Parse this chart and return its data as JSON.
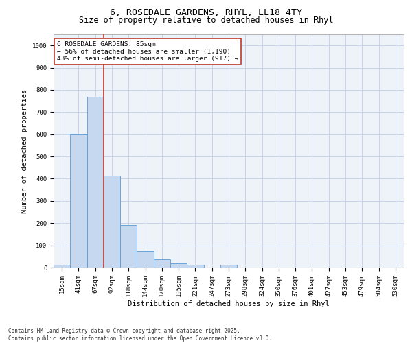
{
  "title_line1": "6, ROSEDALE GARDENS, RHYL, LL18 4TY",
  "title_line2": "Size of property relative to detached houses in Rhyl",
  "xlabel": "Distribution of detached houses by size in Rhyl",
  "ylabel": "Number of detached properties",
  "categories": [
    "15sqm",
    "41sqm",
    "67sqm",
    "92sqm",
    "118sqm",
    "144sqm",
    "170sqm",
    "195sqm",
    "221sqm",
    "247sqm",
    "273sqm",
    "298sqm",
    "324sqm",
    "350sqm",
    "376sqm",
    "401sqm",
    "427sqm",
    "453sqm",
    "479sqm",
    "504sqm",
    "530sqm"
  ],
  "values": [
    12,
    600,
    770,
    415,
    190,
    75,
    38,
    17,
    12,
    0,
    12,
    0,
    0,
    0,
    0,
    0,
    0,
    0,
    0,
    0,
    0
  ],
  "bar_color": "#c5d8f0",
  "bar_edge_color": "#5b9bd5",
  "grid_color": "#c8d4e8",
  "background_color": "#eef2f9",
  "vline_color": "#c0392b",
  "vline_x_index": 2.5,
  "annotation_box_text": "6 ROSEDALE GARDENS: 85sqm\n← 56% of detached houses are smaller (1,190)\n43% of semi-detached houses are larger (917) →",
  "ylim": [
    0,
    1050
  ],
  "yticks": [
    0,
    100,
    200,
    300,
    400,
    500,
    600,
    700,
    800,
    900,
    1000
  ],
  "footer_line1": "Contains HM Land Registry data © Crown copyright and database right 2025.",
  "footer_line2": "Contains public sector information licensed under the Open Government Licence v3.0.",
  "title_fontsize": 9.5,
  "subtitle_fontsize": 8.5,
  "axis_label_fontsize": 7.5,
  "tick_fontsize": 6.5,
  "annotation_fontsize": 6.8,
  "footer_fontsize": 5.5
}
